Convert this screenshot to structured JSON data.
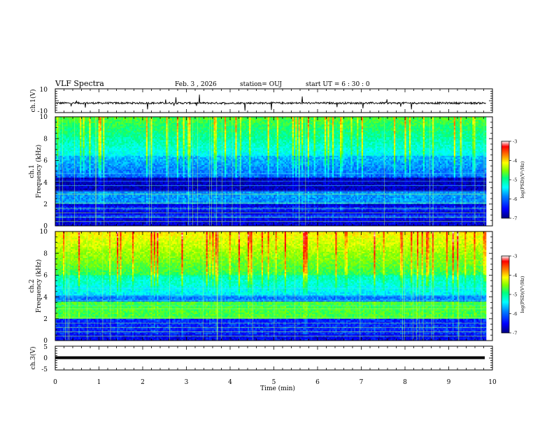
{
  "header": {
    "title": "VLF Spectra",
    "date": "Feb. 3  , 2026",
    "station": "station= OUJ",
    "start": "start  UT =   6  : 30 : 0"
  },
  "colors": {
    "spectrogram_scale": [
      "#000080",
      "#0000ff",
      "#0080ff",
      "#00ffff",
      "#00ff80",
      "#80ff00",
      "#ffff00",
      "#ff8000",
      "#ff0000",
      "#ffffff"
    ],
    "trace": "#000000"
  },
  "chart_data": [
    {
      "type": "line",
      "name": "ch1-waveform",
      "ylabel": "ch.1(V)",
      "ylim": [
        -10,
        10
      ],
      "yticks": [
        "10",
        "-10"
      ],
      "xlim": [
        0,
        10
      ],
      "baseline": -2
    },
    {
      "type": "heatmap",
      "name": "ch1-spectrogram",
      "ylabel": "ch.1\nFrequency (kHz)",
      "ylabel_lines": [
        "ch.1",
        "Frequency (kHz)"
      ],
      "ylim": [
        0,
        10
      ],
      "yticks": [
        "0",
        "2",
        "4",
        "6",
        "8",
        "10"
      ],
      "xlim": [
        0,
        10
      ],
      "data_end_min": 9.85,
      "colorbar": {
        "label": "log(PSD)(V²/Hz)",
        "range": [
          -7,
          -3
        ],
        "ticks": [
          "-3",
          "-4",
          "-5",
          "-6",
          "-7"
        ]
      }
    },
    {
      "type": "heatmap",
      "name": "ch2-spectrogram",
      "ylabel": "ch.2\nFrequency (kHz)",
      "ylabel_lines": [
        "ch.2",
        "Frequency (kHz)"
      ],
      "ylim": [
        0,
        10
      ],
      "yticks": [
        "0",
        "2",
        "4",
        "6",
        "8",
        "10"
      ],
      "xlim": [
        0,
        10
      ],
      "data_end_min": 9.85,
      "colorbar": {
        "label": "log(PSD)(V²/Hz)",
        "range": [
          -7,
          -3
        ],
        "ticks": [
          "-3",
          "-4",
          "-5",
          "-6",
          "-7"
        ]
      }
    },
    {
      "type": "line",
      "name": "ch3-waveform",
      "ylabel": "ch.3(V)",
      "ylim": [
        -5,
        5
      ],
      "yticks": [
        "5",
        "0",
        "-5"
      ],
      "xlim": [
        0,
        10
      ],
      "baseline": -1
    }
  ],
  "xaxis": {
    "label": "Time  (min)",
    "ticks": [
      "0",
      "1",
      "2",
      "3",
      "4",
      "5",
      "6",
      "7",
      "8",
      "9",
      "10"
    ]
  }
}
